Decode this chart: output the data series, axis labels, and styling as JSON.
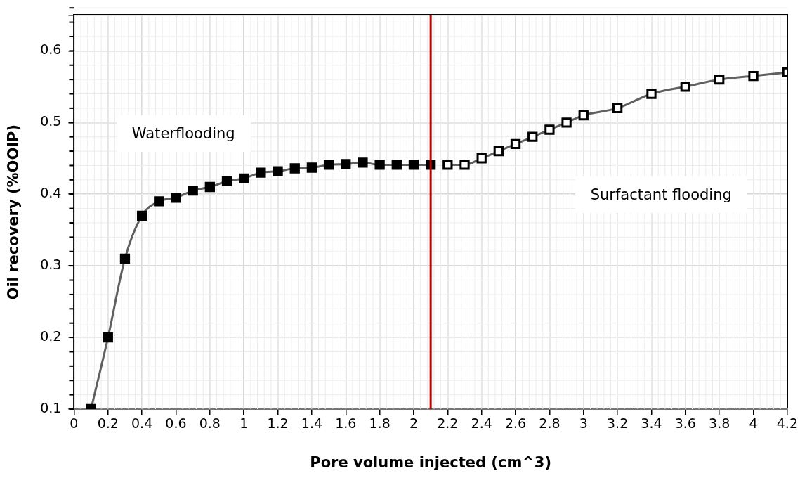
{
  "chart_data": {
    "type": "line",
    "xlabel": "Pore volume injected (cm^3)",
    "ylabel": "Oil recovery (%OOIP)",
    "xlim": [
      0,
      4.2
    ],
    "xticks": [
      0,
      0.2,
      0.4,
      0.6,
      0.8,
      1,
      1.2,
      1.4,
      1.6,
      1.8,
      2,
      2.2,
      2.4,
      2.6,
      2.8,
      3,
      3.2,
      3.4,
      3.6,
      3.8,
      4,
      4.2
    ],
    "ylim": [
      0.1,
      0.65
    ],
    "yticks": [
      0.1,
      0.2,
      0.3,
      0.4,
      0.5,
      0.6,
      {
        "value": 0.65,
        "label": null
      }
    ],
    "grid": true,
    "marker": "square",
    "legend": false,
    "series": [
      {
        "color": "#000000",
        "x": [
          0.1,
          0.2,
          0.3,
          0.4,
          0.5,
          0.6,
          0.7,
          0.8,
          0.9,
          1,
          1.1,
          1.2,
          1.3,
          1.4,
          1.5,
          1.6,
          1.7,
          1.8,
          1.9,
          2,
          2.1
        ],
        "values": [
          0.1,
          0.2,
          0.31,
          0.37,
          0.39,
          0.395,
          0.405,
          0.41,
          0.418,
          0.422,
          0.43,
          0.432,
          0.436,
          0.437,
          0.441,
          0.442,
          0.444,
          0.441,
          0.441,
          0.441,
          0.441
        ]
      },
      {
        "color": "#ffffff",
        "x": [
          2.2,
          2.3,
          2.4,
          2.5,
          2.6,
          2.7,
          2.8,
          2.9,
          3,
          3.2,
          3.4,
          3.6,
          3.8,
          4,
          4.2
        ],
        "values": [
          0.441,
          0.441,
          0.45,
          0.46,
          0.47,
          0.48,
          0.49,
          0.5,
          0.51,
          0.52,
          0.54,
          0.55,
          0.56,
          0.565,
          0.57
        ]
      }
    ],
    "ref_lines": [
      {
        "axis": "x",
        "value": 2.1,
        "color": "#c00000"
      }
    ],
    "annotations": [
      "Waterflooding",
      "Surfactant flooding"
    ]
  }
}
